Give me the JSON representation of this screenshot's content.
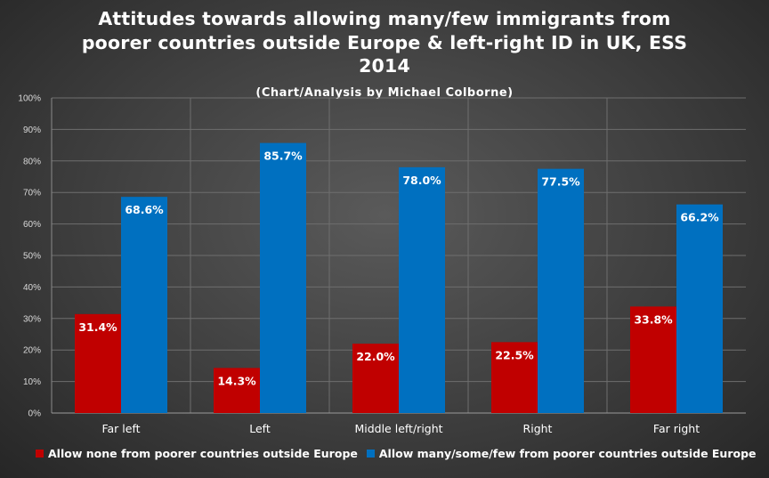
{
  "chart_data": {
    "type": "bar",
    "title_lines": [
      "Attitudes towards allowing many/few immigrants from",
      "poorer countries outside Europe & left-right ID in UK, ESS",
      "2014"
    ],
    "subtitle": "(Chart/Analysis  by Michael Colborne)",
    "categories": [
      "Far left",
      "Left",
      "Middle left/right",
      "Right",
      "Far right"
    ],
    "series": [
      {
        "name": "Allow none from poorer countries outside Europe",
        "color": "#c00000",
        "values": [
          31.4,
          14.3,
          22.0,
          22.5,
          33.8
        ],
        "labels": [
          "31.4%",
          "14.3%",
          "22.0%",
          "22.5%",
          "33.8%"
        ]
      },
      {
        "name": "Allow many/some/few from poorer countries outside Europe",
        "color": "#0070c0",
        "values": [
          68.6,
          85.7,
          78.0,
          77.5,
          66.2
        ],
        "labels": [
          "68.6%",
          "85.7%",
          "78.0%",
          "77.5%",
          "66.2%"
        ]
      }
    ],
    "ylim": [
      0,
      100
    ],
    "yticks": [
      "0%",
      "10%",
      "20%",
      "30%",
      "40%",
      "50%",
      "60%",
      "70%",
      "80%",
      "90%",
      "100%"
    ],
    "grid": true,
    "legend_position": "bottom"
  }
}
